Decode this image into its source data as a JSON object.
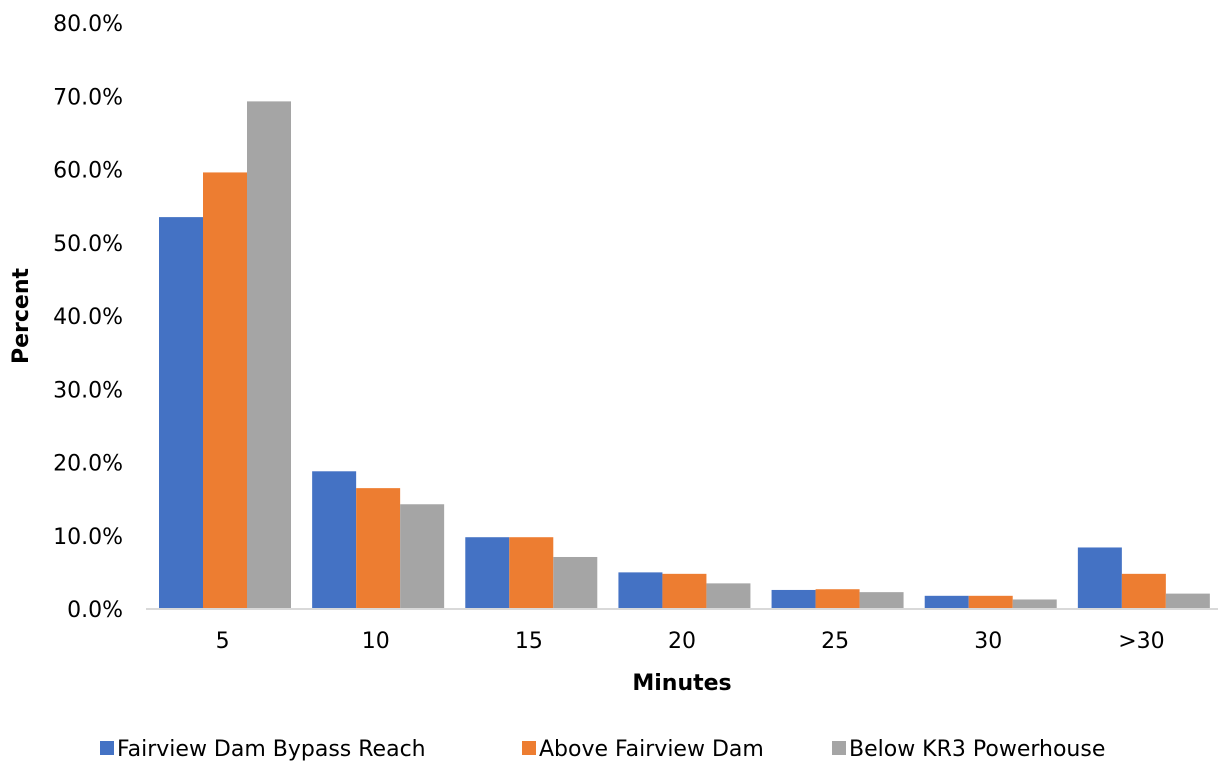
{
  "chart_data": {
    "type": "bar",
    "title": "",
    "xlabel": "Minutes",
    "ylabel": "Percent",
    "categories": [
      "5",
      "10",
      "15",
      "20",
      "25",
      "30",
      ">30"
    ],
    "ylim": [
      0,
      80
    ],
    "yticks": [
      0,
      10,
      20,
      30,
      40,
      50,
      60,
      70,
      80
    ],
    "ytick_labels": [
      "0.0%",
      "10.0%",
      "20.0%",
      "30.0%",
      "40.0%",
      "50.0%",
      "60.0%",
      "70.0%",
      "80.0%"
    ],
    "grid": false,
    "legend_position": "bottom",
    "series": [
      {
        "name": "Fairview Dam Bypass Reach",
        "color": "#4472C4",
        "values": [
          53.5,
          18.8,
          9.8,
          5.0,
          2.6,
          1.8,
          8.4
        ]
      },
      {
        "name": "Above Fairview Dam",
        "color": "#ED7D31",
        "values": [
          59.6,
          16.5,
          9.8,
          4.8,
          2.7,
          1.8,
          4.8
        ]
      },
      {
        "name": "Below KR3 Powerhouse",
        "color": "#A5A5A5",
        "values": [
          69.3,
          14.3,
          7.1,
          3.5,
          2.3,
          1.3,
          2.1
        ]
      }
    ]
  }
}
